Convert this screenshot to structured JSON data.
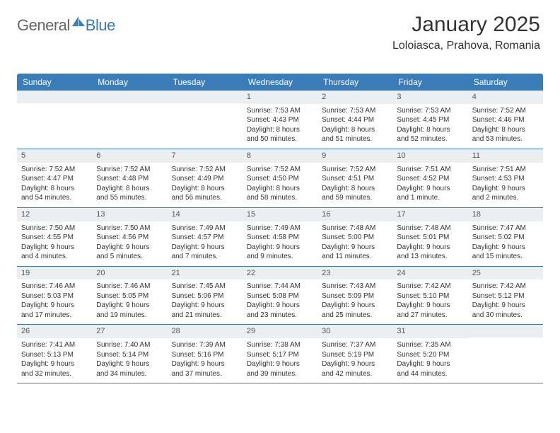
{
  "logo": {
    "general": "General",
    "blue": "Blue",
    "icon_color": "#3a7cb8"
  },
  "title": {
    "month": "January 2025",
    "location": "Loloiasca, Prahova, Romania"
  },
  "colors": {
    "header_bg": "#3a7cb8",
    "header_text": "#ffffff",
    "daynum_bg": "#eceff1",
    "border": "#3a7cb8",
    "body_text": "#333333",
    "background": "#ffffff"
  },
  "daysOfWeek": [
    "Sunday",
    "Monday",
    "Tuesday",
    "Wednesday",
    "Thursday",
    "Friday",
    "Saturday"
  ],
  "calendar": {
    "type": "table",
    "weeks": [
      [
        null,
        null,
        null,
        {
          "n": "1",
          "sr": "7:53 AM",
          "ss": "4:43 PM",
          "dl": "8 hours and 50 minutes."
        },
        {
          "n": "2",
          "sr": "7:53 AM",
          "ss": "4:44 PM",
          "dl": "8 hours and 51 minutes."
        },
        {
          "n": "3",
          "sr": "7:53 AM",
          "ss": "4:45 PM",
          "dl": "8 hours and 52 minutes."
        },
        {
          "n": "4",
          "sr": "7:52 AM",
          "ss": "4:46 PM",
          "dl": "8 hours and 53 minutes."
        }
      ],
      [
        {
          "n": "5",
          "sr": "7:52 AM",
          "ss": "4:47 PM",
          "dl": "8 hours and 54 minutes."
        },
        {
          "n": "6",
          "sr": "7:52 AM",
          "ss": "4:48 PM",
          "dl": "8 hours and 55 minutes."
        },
        {
          "n": "7",
          "sr": "7:52 AM",
          "ss": "4:49 PM",
          "dl": "8 hours and 56 minutes."
        },
        {
          "n": "8",
          "sr": "7:52 AM",
          "ss": "4:50 PM",
          "dl": "8 hours and 58 minutes."
        },
        {
          "n": "9",
          "sr": "7:52 AM",
          "ss": "4:51 PM",
          "dl": "8 hours and 59 minutes."
        },
        {
          "n": "10",
          "sr": "7:51 AM",
          "ss": "4:52 PM",
          "dl": "9 hours and 1 minute."
        },
        {
          "n": "11",
          "sr": "7:51 AM",
          "ss": "4:53 PM",
          "dl": "9 hours and 2 minutes."
        }
      ],
      [
        {
          "n": "12",
          "sr": "7:50 AM",
          "ss": "4:55 PM",
          "dl": "9 hours and 4 minutes."
        },
        {
          "n": "13",
          "sr": "7:50 AM",
          "ss": "4:56 PM",
          "dl": "9 hours and 5 minutes."
        },
        {
          "n": "14",
          "sr": "7:49 AM",
          "ss": "4:57 PM",
          "dl": "9 hours and 7 minutes."
        },
        {
          "n": "15",
          "sr": "7:49 AM",
          "ss": "4:58 PM",
          "dl": "9 hours and 9 minutes."
        },
        {
          "n": "16",
          "sr": "7:48 AM",
          "ss": "5:00 PM",
          "dl": "9 hours and 11 minutes."
        },
        {
          "n": "17",
          "sr": "7:48 AM",
          "ss": "5:01 PM",
          "dl": "9 hours and 13 minutes."
        },
        {
          "n": "18",
          "sr": "7:47 AM",
          "ss": "5:02 PM",
          "dl": "9 hours and 15 minutes."
        }
      ],
      [
        {
          "n": "19",
          "sr": "7:46 AM",
          "ss": "5:03 PM",
          "dl": "9 hours and 17 minutes."
        },
        {
          "n": "20",
          "sr": "7:46 AM",
          "ss": "5:05 PM",
          "dl": "9 hours and 19 minutes."
        },
        {
          "n": "21",
          "sr": "7:45 AM",
          "ss": "5:06 PM",
          "dl": "9 hours and 21 minutes."
        },
        {
          "n": "22",
          "sr": "7:44 AM",
          "ss": "5:08 PM",
          "dl": "9 hours and 23 minutes."
        },
        {
          "n": "23",
          "sr": "7:43 AM",
          "ss": "5:09 PM",
          "dl": "9 hours and 25 minutes."
        },
        {
          "n": "24",
          "sr": "7:42 AM",
          "ss": "5:10 PM",
          "dl": "9 hours and 27 minutes."
        },
        {
          "n": "25",
          "sr": "7:42 AM",
          "ss": "5:12 PM",
          "dl": "9 hours and 30 minutes."
        }
      ],
      [
        {
          "n": "26",
          "sr": "7:41 AM",
          "ss": "5:13 PM",
          "dl": "9 hours and 32 minutes."
        },
        {
          "n": "27",
          "sr": "7:40 AM",
          "ss": "5:14 PM",
          "dl": "9 hours and 34 minutes."
        },
        {
          "n": "28",
          "sr": "7:39 AM",
          "ss": "5:16 PM",
          "dl": "9 hours and 37 minutes."
        },
        {
          "n": "29",
          "sr": "7:38 AM",
          "ss": "5:17 PM",
          "dl": "9 hours and 39 minutes."
        },
        {
          "n": "30",
          "sr": "7:37 AM",
          "ss": "5:19 PM",
          "dl": "9 hours and 42 minutes."
        },
        {
          "n": "31",
          "sr": "7:35 AM",
          "ss": "5:20 PM",
          "dl": "9 hours and 44 minutes."
        },
        null
      ]
    ]
  },
  "labels": {
    "sunrise": "Sunrise:",
    "sunset": "Sunset:",
    "daylight": "Daylight:"
  }
}
